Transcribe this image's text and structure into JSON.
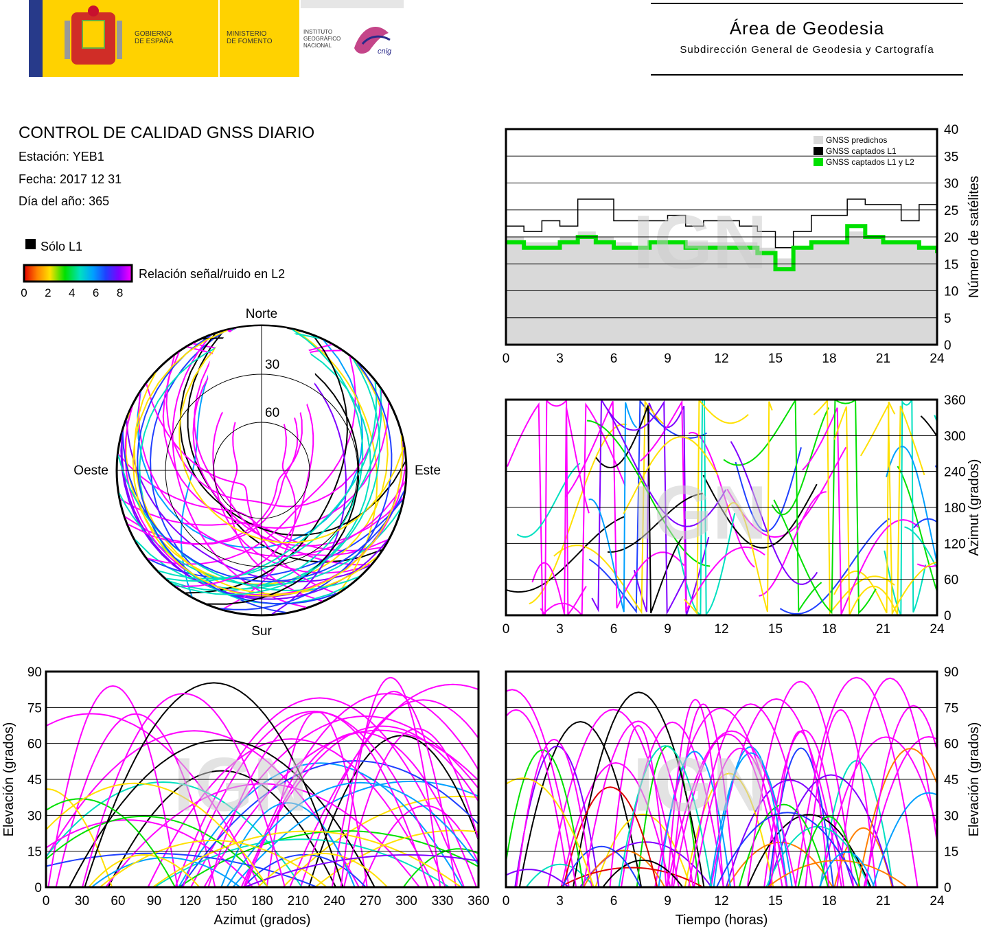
{
  "header": {
    "logo_gov": "GOBIERNO\nDE ESPAÑA",
    "logo_min": "MINISTERIO\nDE FOMENTO",
    "logo_ign": "INSTITUTO\nGEOGRÁFICO\nNACIONAL",
    "logo_cnig": "cnig",
    "title": "Área de Geodesia",
    "subtitle": "Subdirección General de Geodesia y Cartografía"
  },
  "info": {
    "title": "CONTROL DE CALIDAD GNSS DIARIO",
    "station": "Estación: YEB1",
    "date": "Fecha: 2017 12 31",
    "doy": "Día del año: 365"
  },
  "legend": {
    "l1_only": "Sólo L1",
    "snr_label": "Relación señal/ruido en L2",
    "snr_ticks": [
      "0",
      "2",
      "4",
      "6",
      "8"
    ],
    "snr_colors": [
      "#e00000",
      "#ff8000",
      "#ffe000",
      "#00e000",
      "#00e0c0",
      "#00a0ff",
      "#2040ff",
      "#8000ff",
      "#ff00ff"
    ],
    "l1_color": "#000000"
  },
  "watermark": "IGN",
  "chart_data": [
    {
      "type": "area",
      "id": "satellites",
      "ylabel": "Número de satélites",
      "xlim": [
        0,
        24
      ],
      "ylim": [
        0,
        40
      ],
      "x_ticks": [
        "0",
        "3",
        "6",
        "9",
        "12",
        "15",
        "18",
        "21",
        "24"
      ],
      "y_ticks": [
        "0",
        "5",
        "10",
        "15",
        "20",
        "25",
        "30",
        "35",
        "40"
      ],
      "legend": [
        "GNSS predichos",
        "GNSS captados L1",
        "GNSS captados L1 y L2"
      ],
      "legend_position": "top-right",
      "colors": [
        "#d9d9d9",
        "#000000",
        "#00e000"
      ],
      "series": [
        {
          "name": "GNSS predichos",
          "x": [
            0,
            1,
            2,
            3,
            4,
            5,
            6,
            7,
            8,
            9,
            10,
            11,
            12,
            13,
            14,
            15,
            16,
            17,
            18,
            19,
            20,
            21,
            22,
            23,
            24
          ],
          "values": [
            20,
            19,
            19,
            20,
            21,
            20,
            19,
            18,
            19,
            19,
            19,
            19,
            19,
            19,
            18,
            16,
            18,
            19,
            19,
            21,
            20,
            19,
            19,
            18,
            19
          ]
        },
        {
          "name": "GNSS captados L1",
          "x": [
            0,
            1,
            2,
            3,
            4,
            5,
            6,
            7,
            8,
            9,
            10,
            11,
            12,
            13,
            14,
            15,
            16,
            17,
            18,
            19,
            20,
            21,
            22,
            23,
            24
          ],
          "values": [
            22,
            21,
            23,
            22,
            27,
            27,
            23,
            23,
            23,
            24,
            22,
            23,
            23,
            22,
            21,
            18,
            21,
            24,
            24,
            27,
            26,
            26,
            23,
            26,
            24
          ]
        },
        {
          "name": "GNSS captados L1 y L2",
          "x": [
            0,
            1,
            2,
            3,
            4,
            5,
            6,
            7,
            8,
            9,
            10,
            11,
            12,
            13,
            14,
            15,
            16,
            17,
            18,
            19,
            20,
            21,
            22,
            23,
            24
          ],
          "values": [
            19,
            18,
            18,
            19,
            20,
            19,
            18,
            18,
            19,
            19,
            18,
            18,
            18,
            18,
            17,
            14,
            18,
            19,
            19,
            22,
            20,
            19,
            19,
            18,
            17
          ]
        }
      ]
    },
    {
      "type": "scatter",
      "id": "azimuth_time",
      "ylabel": "Azimut (grados)",
      "xlim": [
        0,
        24
      ],
      "ylim": [
        0,
        360
      ],
      "x_ticks": [
        "0",
        "3",
        "6",
        "9",
        "12",
        "15",
        "18",
        "21",
        "24"
      ],
      "y_ticks": [
        "0",
        "60",
        "120",
        "180",
        "240",
        "300",
        "360"
      ]
    },
    {
      "type": "scatter",
      "id": "skyplot",
      "directions": {
        "north": "Norte",
        "south": "Sur",
        "west": "Oeste",
        "east": "Este"
      },
      "elevation_rings": [
        "30",
        "60"
      ]
    },
    {
      "type": "scatter",
      "id": "elevation_azimuth",
      "xlabel": "Azimut (grados)",
      "ylabel": "Elevación (grados)",
      "xlim": [
        0,
        360
      ],
      "ylim": [
        0,
        90
      ],
      "x_ticks": [
        "0",
        "30",
        "60",
        "90",
        "120",
        "150",
        "180",
        "210",
        "240",
        "270",
        "300",
        "330",
        "360"
      ],
      "y_ticks": [
        "0",
        "15",
        "30",
        "45",
        "60",
        "75",
        "90"
      ]
    },
    {
      "type": "scatter",
      "id": "elevation_time",
      "xlabel": "Tiempo (horas)",
      "ylabel": "Elevación (grados)",
      "xlim": [
        0,
        24
      ],
      "ylim": [
        0,
        90
      ],
      "x_ticks": [
        "0",
        "3",
        "6",
        "9",
        "12",
        "15",
        "18",
        "21",
        "24"
      ],
      "y_ticks": [
        "0",
        "15",
        "30",
        "45",
        "60",
        "75",
        "90"
      ]
    }
  ]
}
